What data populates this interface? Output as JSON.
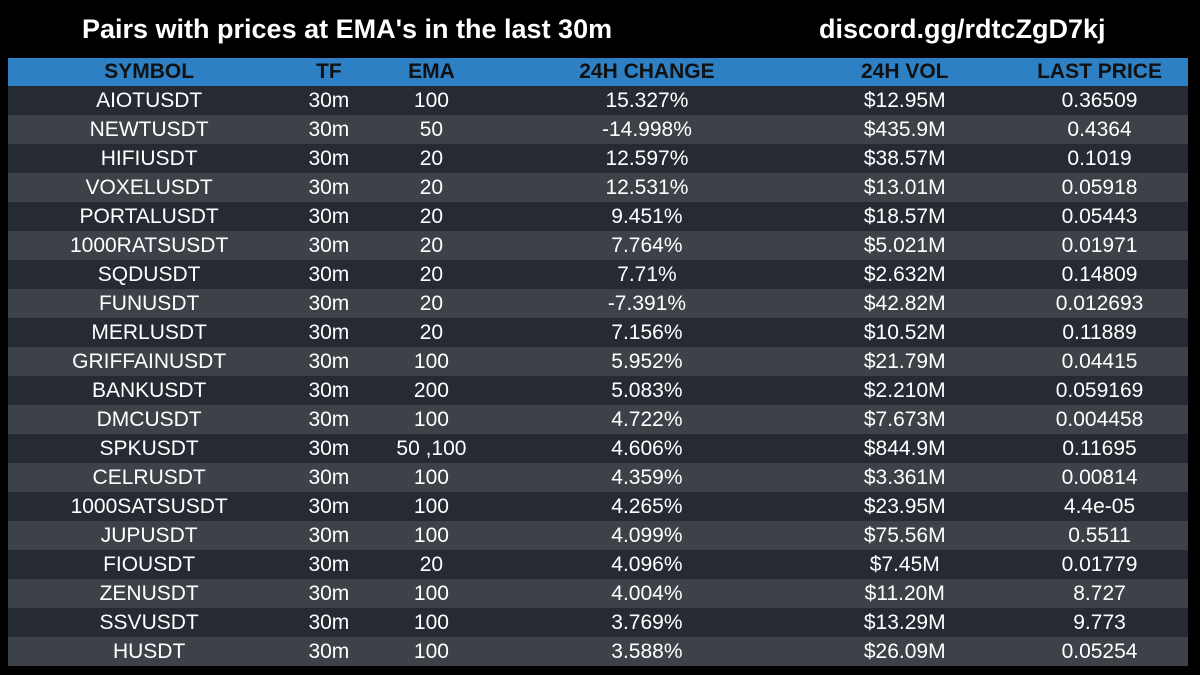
{
  "header": {
    "title": "Pairs with prices at EMA's in the last 30m",
    "discord": "discord.gg/rdtcZgD7kj"
  },
  "table": {
    "columns": [
      "SYMBOL",
      "TF",
      "EMA",
      "24H CHANGE",
      "24H VOL",
      "LAST PRICE"
    ],
    "rows": [
      [
        "AIOTUSDT",
        "30m",
        "100",
        "15.327%",
        "$12.95M",
        "0.36509"
      ],
      [
        "NEWTUSDT",
        "30m",
        "50",
        "-14.998%",
        "$435.9M",
        "0.4364"
      ],
      [
        "HIFIUSDT",
        "30m",
        "20",
        "12.597%",
        "$38.57M",
        "0.1019"
      ],
      [
        "VOXELUSDT",
        "30m",
        "20",
        "12.531%",
        "$13.01M",
        "0.05918"
      ],
      [
        "PORTALUSDT",
        "30m",
        "20",
        "9.451%",
        "$18.57M",
        "0.05443"
      ],
      [
        "1000RATSUSDT",
        "30m",
        "20",
        "7.764%",
        "$5.021M",
        "0.01971"
      ],
      [
        "SQDUSDT",
        "30m",
        "20",
        "7.71%",
        "$2.632M",
        "0.14809"
      ],
      [
        "FUNUSDT",
        "30m",
        "20",
        "-7.391%",
        "$42.82M",
        "0.012693"
      ],
      [
        "MERLUSDT",
        "30m",
        "20",
        "7.156%",
        "$10.52M",
        "0.11889"
      ],
      [
        "GRIFFAINUSDT",
        "30m",
        "100",
        "5.952%",
        "$21.79M",
        "0.04415"
      ],
      [
        "BANKUSDT",
        "30m",
        "200",
        "5.083%",
        "$2.210M",
        "0.059169"
      ],
      [
        "DMCUSDT",
        "30m",
        "100",
        "4.722%",
        "$7.673M",
        "0.004458"
      ],
      [
        "SPKUSDT",
        "30m",
        "50 ,100",
        "4.606%",
        "$844.9M",
        "0.11695"
      ],
      [
        "CELRUSDT",
        "30m",
        "100",
        "4.359%",
        "$3.361M",
        "0.00814"
      ],
      [
        "1000SATSUSDT",
        "30m",
        "100",
        "4.265%",
        "$23.95M",
        "4.4e-05"
      ],
      [
        "JUPUSDT",
        "30m",
        "100",
        "4.099%",
        "$75.56M",
        "0.5511"
      ],
      [
        "FIOUSDT",
        "30m",
        "20",
        "4.096%",
        "$7.45M",
        "0.01779"
      ],
      [
        "ZENUSDT",
        "30m",
        "100",
        "4.004%",
        "$11.20M",
        "8.727"
      ],
      [
        "SSVUSDT",
        "30m",
        "100",
        "3.769%",
        "$13.29M",
        "9.773"
      ],
      [
        "HUSDT",
        "30m",
        "100",
        "3.588%",
        "$26.09M",
        "0.05254"
      ]
    ]
  }
}
